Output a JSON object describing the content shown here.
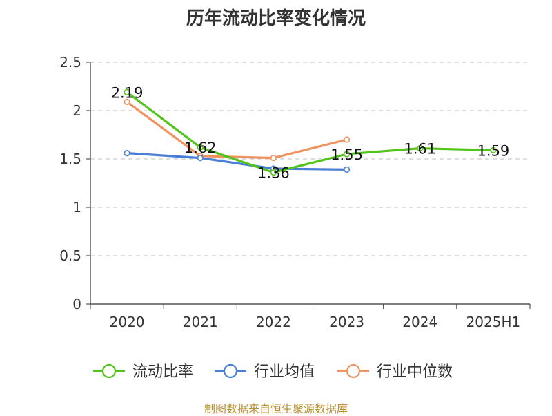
{
  "chart_data": {
    "type": "line",
    "title": "历年流动比率变化情况",
    "categories": [
      "2020",
      "2021",
      "2022",
      "2023",
      "2024",
      "2025H1"
    ],
    "ylim": [
      0,
      2.5
    ],
    "yticks": [
      0,
      0.5,
      1,
      1.5,
      2,
      2.5
    ],
    "ytick_labels": [
      "0",
      "0.5",
      "1",
      "1.5",
      "2",
      "2.5"
    ],
    "grid": "horizontal-dashed",
    "legend_position": "bottom",
    "series": [
      {
        "name": "流动比率",
        "color": "#52c41a",
        "values": [
          2.19,
          1.62,
          1.36,
          1.55,
          1.61,
          1.59
        ],
        "labels": [
          "2.19",
          "1.62",
          "1.36",
          "1.55",
          "1.61",
          "1.59"
        ]
      },
      {
        "name": "行业均值",
        "color": "#4a7fd8",
        "values": [
          1.56,
          1.51,
          1.4,
          1.39,
          null,
          null
        ]
      },
      {
        "name": "行业中位数",
        "color": "#f0935e",
        "values": [
          2.09,
          1.53,
          1.51,
          1.7,
          null,
          null
        ]
      }
    ]
  },
  "source": "制图数据来自恒生聚源数据库"
}
